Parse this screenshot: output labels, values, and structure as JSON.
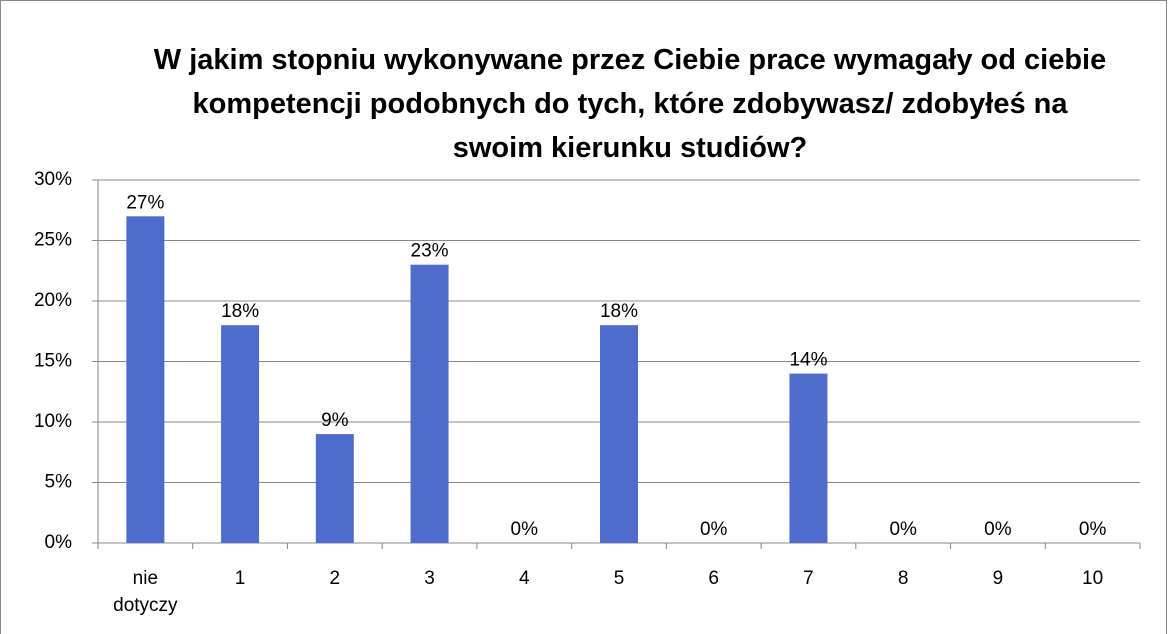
{
  "chart_data": {
    "type": "bar",
    "title": "W jakim stopniu wykonywane przez Ciebie prace wymagały od ciebie kompetencji podobnych do tych, które zdobywasz/ zdobyłeś na swoim kierunku studiów?",
    "categories": [
      "nie dotyczy",
      "1",
      "2",
      "3",
      "4",
      "5",
      "6",
      "7",
      "8",
      "9",
      "10"
    ],
    "values": [
      27,
      18,
      9,
      23,
      0,
      18,
      0,
      14,
      0,
      0,
      0
    ],
    "value_labels": [
      "27%",
      "18%",
      "9%",
      "23%",
      "0%",
      "18%",
      "0%",
      "14%",
      "0%",
      "0%",
      "0%"
    ],
    "color": "#4f6bcb",
    "ylim": [
      0,
      30
    ],
    "yticks": [
      {
        "value": 0,
        "label": "0%"
      },
      {
        "value": 5,
        "label": "5%"
      },
      {
        "value": 10,
        "label": "10%"
      },
      {
        "value": 15,
        "label": "15%"
      },
      {
        "value": 20,
        "label": "20%"
      },
      {
        "value": 25,
        "label": "25%"
      },
      {
        "value": 30,
        "label": "30%"
      }
    ],
    "grid": true
  }
}
